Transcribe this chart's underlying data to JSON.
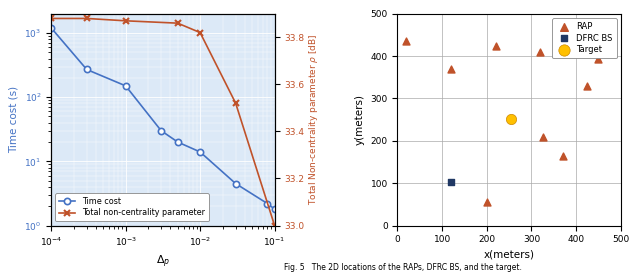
{
  "left_plot": {
    "delta_p": [
      0.0001,
      0.0003,
      0.001,
      0.003,
      0.005,
      0.01,
      0.03,
      0.08,
      0.1
    ],
    "time_cost": [
      1200,
      270,
      150,
      30,
      20,
      14,
      4.5,
      2.2,
      1.8
    ],
    "ncp_x": [
      0.0001,
      0.0003,
      0.001,
      0.005,
      0.01,
      0.03,
      0.1
    ],
    "ncp_y": [
      33.88,
      33.88,
      33.87,
      33.86,
      33.82,
      33.52,
      33.0
    ],
    "xlabel": "$\\Delta_p$",
    "ylabel_left": "Time cost (s)",
    "ylabel_right": "Total Non-centrality parameter $\\rho$ [dB]",
    "ylim_right": [
      33.0,
      33.9
    ],
    "yticks_right": [
      33.0,
      33.2,
      33.4,
      33.6,
      33.8
    ],
    "legend_time": "Time cost",
    "legend_ncp": "Total non-centrality parameter",
    "color_left": "#4472c4",
    "color_right": "#c0522a",
    "bg_color": "#dce9f7",
    "grid_color": "#ffffff"
  },
  "right_plot": {
    "rap_x": [
      20,
      120,
      200,
      220,
      320,
      325,
      370,
      425,
      450
    ],
    "rap_y": [
      435,
      370,
      55,
      425,
      410,
      208,
      165,
      330,
      393
    ],
    "dfrc_x": [
      120
    ],
    "dfrc_y": [
      103
    ],
    "target_x": [
      255
    ],
    "target_y": [
      252
    ],
    "xlabel": "x(meters)",
    "ylabel": "y(meters)",
    "xlim": [
      0,
      500
    ],
    "ylim": [
      0,
      500
    ],
    "xticks": [
      0,
      100,
      200,
      300,
      400,
      500
    ],
    "yticks": [
      0,
      100,
      200,
      300,
      400,
      500
    ],
    "rap_color": "#c0522a",
    "dfrc_color": "#203864",
    "target_color": "#ffc000",
    "legend_rap": "RAP",
    "legend_dfrc": "DFRC BS",
    "legend_target": "Target",
    "bg_color": "#ffffff"
  },
  "caption": "Fig. 5   The 2D locations of the RAPs, DFRC BS, and the target."
}
